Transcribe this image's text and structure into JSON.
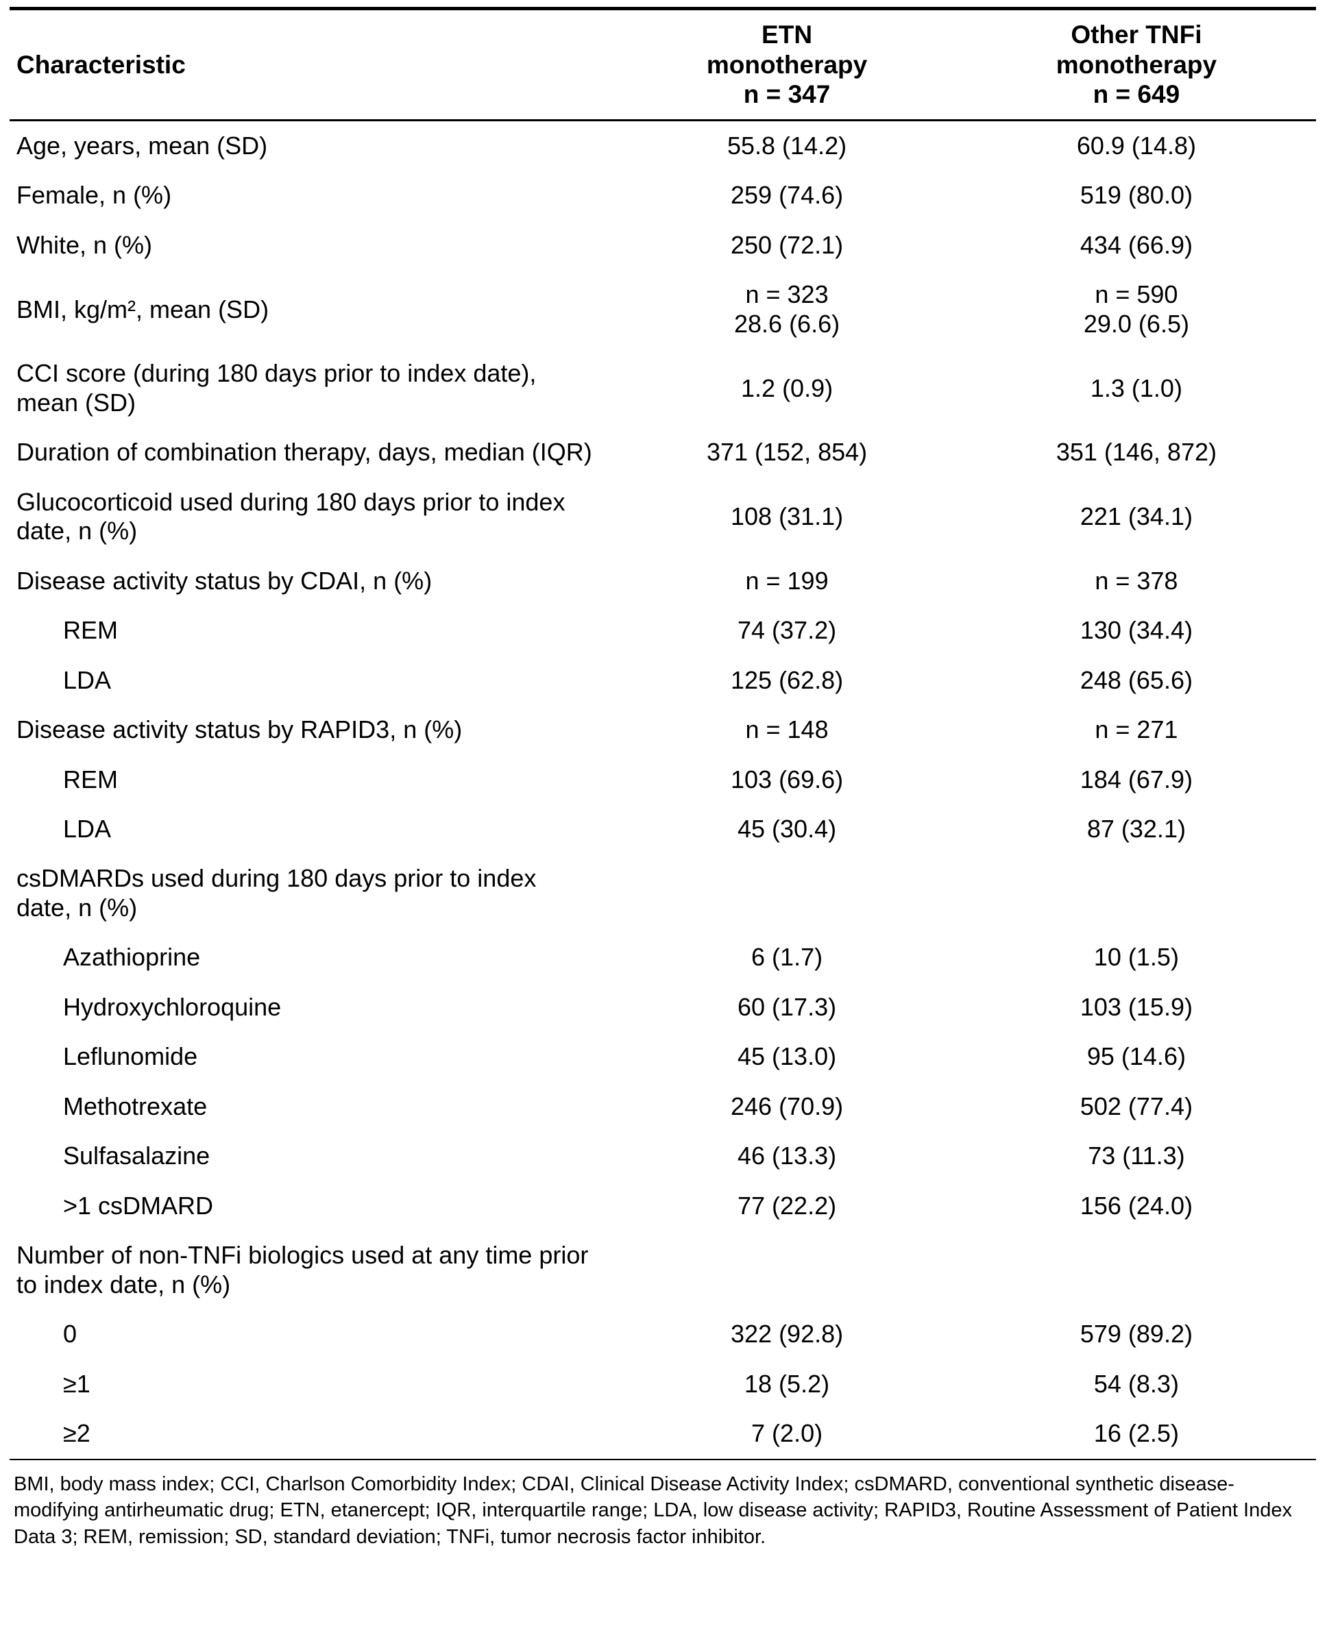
{
  "table": {
    "header": {
      "characteristic": "Characteristic",
      "col_etn": "ETN\nmonotherapy\nn = 347",
      "col_other": "Other TNFi\nmonotherapy\nn = 649"
    },
    "rows": [
      {
        "label": "Age, years, mean (SD)",
        "indent": 0,
        "etn": "55.8 (14.2)",
        "other": "60.9 (14.8)"
      },
      {
        "label": "Female, n (%)",
        "indent": 0,
        "etn": "259 (74.6)",
        "other": "519 (80.0)"
      },
      {
        "label": "White, n (%)",
        "indent": 0,
        "etn": "250 (72.1)",
        "other": "434 (66.9)"
      },
      {
        "label": "BMI, kg/m², mean (SD)",
        "indent": 0,
        "etn": "n = 323\n28.6 (6.6)",
        "other": "n = 590\n29.0 (6.5)"
      },
      {
        "label": "CCI score (during 180 days prior to index date), mean (SD)",
        "indent": 0,
        "etn": "1.2 (0.9)",
        "other": "1.3 (1.0)"
      },
      {
        "label": "Duration of combination therapy, days, median (IQR)",
        "indent": 0,
        "etn": "371 (152, 854)",
        "other": "351 (146, 872)"
      },
      {
        "label": "Glucocorticoid used during 180 days prior to index date, n (%)",
        "indent": 0,
        "etn": "108 (31.1)",
        "other": "221 (34.1)"
      },
      {
        "label": "Disease activity status by CDAI, n (%)",
        "indent": 0,
        "etn": "n = 199",
        "other": "n = 378"
      },
      {
        "label": "REM",
        "indent": 1,
        "etn": "74 (37.2)",
        "other": "130 (34.4)"
      },
      {
        "label": "LDA",
        "indent": 1,
        "etn": "125 (62.8)",
        "other": "248 (65.6)"
      },
      {
        "label": "Disease activity status by RAPID3, n (%)",
        "indent": 0,
        "etn": "n = 148",
        "other": "n = 271"
      },
      {
        "label": "REM",
        "indent": 1,
        "etn": "103 (69.6)",
        "other": "184 (67.9)"
      },
      {
        "label": "LDA",
        "indent": 1,
        "etn": "45 (30.4)",
        "other": "87 (32.1)"
      },
      {
        "label": "csDMARDs used during 180 days prior to index date, n (%)",
        "indent": 0,
        "etn": "",
        "other": ""
      },
      {
        "label": "Azathioprine",
        "indent": 1,
        "etn": "6 (1.7)",
        "other": "10 (1.5)"
      },
      {
        "label": "Hydroxychloroquine",
        "indent": 1,
        "etn": "60 (17.3)",
        "other": "103 (15.9)"
      },
      {
        "label": "Leflunomide",
        "indent": 1,
        "etn": "45 (13.0)",
        "other": "95 (14.6)"
      },
      {
        "label": "Methotrexate",
        "indent": 1,
        "etn": "246 (70.9)",
        "other": "502 (77.4)"
      },
      {
        "label": "Sulfasalazine",
        "indent": 1,
        "etn": "46 (13.3)",
        "other": "73 (11.3)"
      },
      {
        "label": ">1 csDMARD",
        "indent": 1,
        "etn": "77 (22.2)",
        "other": "156 (24.0)"
      },
      {
        "label": "Number of non-TNFi biologics used at any time prior to index date, n (%)",
        "indent": 0,
        "etn": "",
        "other": ""
      },
      {
        "label": "0",
        "indent": 1,
        "etn": "322 (92.8)",
        "other": "579 (89.2)"
      },
      {
        "label": "≥1",
        "indent": 1,
        "etn": "18 (5.2)",
        "other": "54 (8.3)"
      },
      {
        "label": "≥2",
        "indent": 1,
        "etn": "7 (2.0)",
        "other": "16 (2.5)"
      }
    ]
  },
  "footnote": "BMI, body mass index; CCI, Charlson Comorbidity Index; CDAI, Clinical Disease Activity Index; csDMARD, conventional synthetic disease-modifying antirheumatic drug; ETN, etanercept; IQR, interquartile range; LDA, low disease activity; RAPID3, Routine Assessment of Patient Index Data 3; REM, remission; SD, standard deviation; TNFi, tumor necrosis factor inhibitor.",
  "colors": {
    "text": "#000000",
    "background": "#ffffff",
    "rule": "#000000"
  }
}
